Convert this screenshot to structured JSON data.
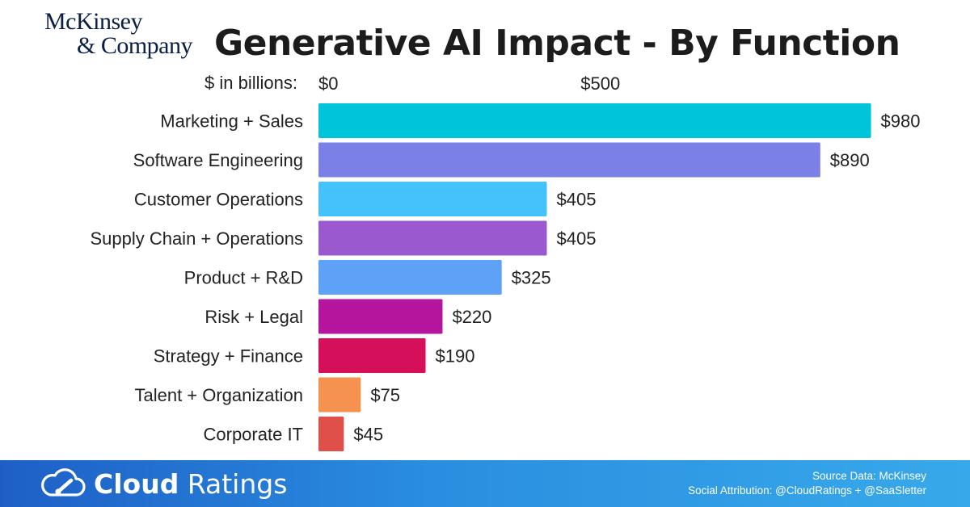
{
  "logo": {
    "line1": "McKinsey",
    "line2": "& Company"
  },
  "title": "Generative AI Impact - By Function",
  "chart_data": {
    "type": "bar",
    "orientation": "horizontal",
    "title": "Generative AI Impact - By Function",
    "units_label": "$ in billions:",
    "x_ticks": [
      {
        "value": 0,
        "label": "$0"
      },
      {
        "value": 500,
        "label": "$500"
      }
    ],
    "xlim": [
      0,
      1000
    ],
    "grid": false,
    "categories": [
      "Marketing + Sales",
      "Software Engineering",
      "Customer Operations",
      "Supply Chain + Operations",
      "Product + R&D",
      "Risk + Legal",
      "Strategy + Finance",
      "Talent + Organization",
      "Corporate IT"
    ],
    "values": [
      980,
      890,
      405,
      405,
      325,
      220,
      190,
      75,
      45
    ],
    "value_labels": [
      "$980",
      "$890",
      "$405",
      "$405",
      "$325",
      "$220",
      "$190",
      "$75",
      "$45"
    ],
    "colors": [
      "#00c4da",
      "#7b80e6",
      "#44c2fb",
      "#9b59d0",
      "#5ea2f7",
      "#b5149c",
      "#d50f5a",
      "#f5924f",
      "#e0504b"
    ]
  },
  "footer": {
    "brand_icon": "cloud-gauge-icon",
    "brand_bold": "Cloud",
    "brand_light": " Ratings",
    "source": "Source Data: McKinsey",
    "attribution": "Social Attribution: @CloudRatings + @SaaSletter"
  }
}
